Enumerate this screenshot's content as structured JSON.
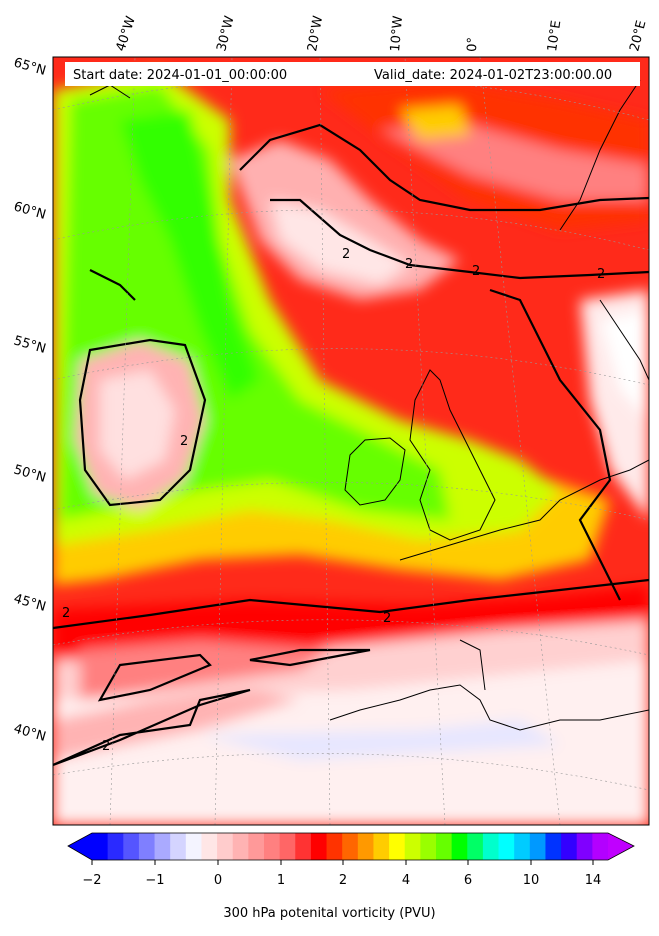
{
  "header": {
    "start_date": "Start date: 2024-01-01_00:00:00",
    "valid_date": "Valid_date: 2024-01-02T23:00:00.00"
  },
  "map": {
    "lon_labels": [
      "40°W",
      "30°W",
      "20°W",
      "10°W",
      "0°",
      "10°E",
      "20°E"
    ],
    "lat_labels": [
      "65°N",
      "60°N",
      "55°N",
      "50°N",
      "45°N",
      "40°N"
    ],
    "contour_value_label": "2",
    "contour_level_pvu": 2
  },
  "colorbar": {
    "title": "300 hPa potenital vorticity (PVU)",
    "tick_labels": [
      "−2",
      "−1",
      "0",
      "1",
      "2",
      "4",
      "6",
      "10",
      "14"
    ],
    "colors": [
      "#0000ff",
      "#2a2aff",
      "#5555ff",
      "#7f7fff",
      "#aaaaff",
      "#d4d4ff",
      "#f4f4ff",
      "#ffe6e6",
      "#ffcccc",
      "#ffb3b3",
      "#ff9999",
      "#ff8080",
      "#ff6666",
      "#ff3333",
      "#ff0000",
      "#ff3300",
      "#ff6600",
      "#ff9900",
      "#ffcc00",
      "#ffff00",
      "#ccff00",
      "#99ff00",
      "#66ff00",
      "#00ff00",
      "#00ff66",
      "#00ffcc",
      "#00ffff",
      "#00ccff",
      "#0099ff",
      "#0033ff",
      "#3300ff",
      "#8000ff",
      "#b300ff"
    ],
    "under_color": "#0000ff",
    "over_color": "#c000ff"
  }
}
